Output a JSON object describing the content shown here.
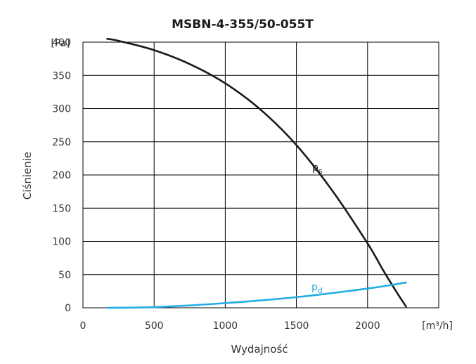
{
  "chart_data": {
    "type": "line",
    "title": "MSBN-4-355/50-055T",
    "xlabel": "Wydajność",
    "ylabel": "Ciśnienie",
    "x_unit": "[m³/h]",
    "y_unit": "[Pa]",
    "xlim": [
      0,
      2500
    ],
    "ylim": [
      0,
      400
    ],
    "x_ticks": [
      "0",
      "500",
      "1000",
      "1500",
      "2000"
    ],
    "y_ticks": [
      "0",
      "50",
      "100",
      "150",
      "200",
      "250",
      "300",
      "350",
      "400"
    ],
    "grid": true,
    "series": [
      {
        "name": "ps",
        "label_base": "p",
        "label_sub": "s",
        "color": "#1a1a1a",
        "x": [
          170,
          250,
          500,
          750,
          1000,
          1250,
          1500,
          1750,
          2000,
          2100,
          2200,
          2270
        ],
        "y": [
          405,
          402,
          388,
          367,
          338,
          298,
          245,
          177,
          97,
          60,
          25,
          2
        ]
      },
      {
        "name": "pd",
        "label_base": "p",
        "label_sub": "d",
        "color": "#21ade3",
        "x": [
          170,
          500,
          1000,
          1500,
          2000,
          2270
        ],
        "y": [
          0,
          1,
          7,
          16,
          29,
          38
        ]
      }
    ]
  }
}
